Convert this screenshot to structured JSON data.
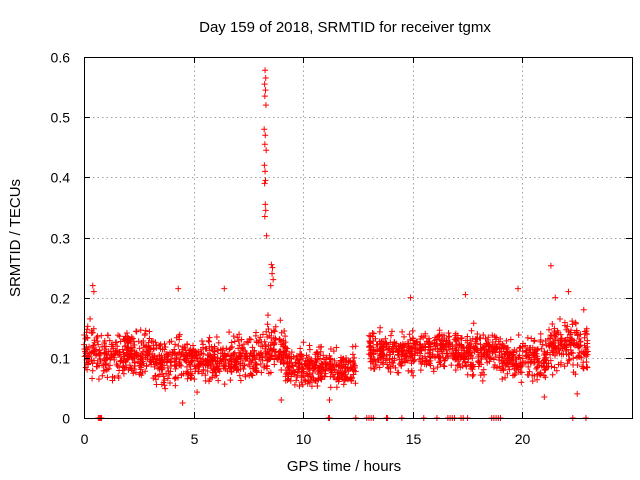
{
  "chart_data": {
    "type": "scatter",
    "title": "Day 159 of 2018, SRMTID for receiver tgmx",
    "xlabel": "GPS time / hours",
    "ylabel": "SRMTID / TECUs",
    "xlim": [
      0,
      25
    ],
    "ylim": [
      0,
      0.6
    ],
    "xticks": [
      0,
      5,
      10,
      15,
      20
    ],
    "xtick_labels": [
      "0",
      "5",
      "10",
      "15",
      "20"
    ],
    "yticks": [
      0,
      0.1,
      0.2,
      0.3,
      0.4,
      0.5,
      0.6
    ],
    "ytick_labels": [
      "0",
      "0.1",
      "0.2",
      "0.3",
      "0.4",
      "0.5",
      "0.6"
    ],
    "grid": true,
    "marker": "+",
    "color": "#ff0000",
    "series": [
      {
        "name": "SRMTID",
        "bands": [
          {
            "x": [
              0.0,
              0.6
            ],
            "mean": 0.11,
            "spread": 0.04
          },
          {
            "x": [
              0.6,
              3.2
            ],
            "mean": 0.105,
            "spread": 0.035
          },
          {
            "x": [
              3.2,
              6.6
            ],
            "mean": 0.095,
            "spread": 0.035
          },
          {
            "x": [
              6.6,
              8.0
            ],
            "mean": 0.1,
            "spread": 0.035
          },
          {
            "x": [
              8.0,
              9.2
            ],
            "mean": 0.115,
            "spread": 0.04
          },
          {
            "x": [
              9.2,
              12.4
            ],
            "mean": 0.085,
            "spread": 0.03
          },
          {
            "x": [
              13.0,
              17.0
            ],
            "mean": 0.11,
            "spread": 0.03
          },
          {
            "x": [
              16.9,
              19.0
            ],
            "mean": 0.11,
            "spread": 0.035
          },
          {
            "x": [
              19.0,
              21.2
            ],
            "mean": 0.1,
            "spread": 0.035
          },
          {
            "x": [
              21.2,
              23.0
            ],
            "mean": 0.12,
            "spread": 0.04
          }
        ],
        "peaks": [
          {
            "x": 8.26,
            "y": 0.578
          },
          {
            "x": 8.29,
            "y": 0.565
          },
          {
            "x": 8.24,
            "y": 0.555
          },
          {
            "x": 8.28,
            "y": 0.545
          },
          {
            "x": 8.25,
            "y": 0.535
          },
          {
            "x": 8.3,
            "y": 0.52
          },
          {
            "x": 8.22,
            "y": 0.48
          },
          {
            "x": 8.27,
            "y": 0.47
          },
          {
            "x": 8.25,
            "y": 0.455
          },
          {
            "x": 8.31,
            "y": 0.445
          },
          {
            "x": 8.23,
            "y": 0.42
          },
          {
            "x": 8.26,
            "y": 0.41
          },
          {
            "x": 8.28,
            "y": 0.395
          },
          {
            "x": 8.24,
            "y": 0.39
          },
          {
            "x": 8.27,
            "y": 0.355
          },
          {
            "x": 8.29,
            "y": 0.345
          },
          {
            "x": 8.25,
            "y": 0.335
          },
          {
            "x": 8.33,
            "y": 0.303
          },
          {
            "x": 8.55,
            "y": 0.255
          },
          {
            "x": 8.6,
            "y": 0.25
          },
          {
            "x": 8.58,
            "y": 0.24
          },
          {
            "x": 8.63,
            "y": 0.23
          },
          {
            "x": 8.52,
            "y": 0.22
          },
          {
            "x": 0.4,
            "y": 0.22
          },
          {
            "x": 0.45,
            "y": 0.21
          },
          {
            "x": 4.3,
            "y": 0.215
          },
          {
            "x": 6.4,
            "y": 0.215
          },
          {
            "x": 14.9,
            "y": 0.2
          },
          {
            "x": 17.4,
            "y": 0.205
          },
          {
            "x": 19.8,
            "y": 0.215
          },
          {
            "x": 21.3,
            "y": 0.253
          },
          {
            "x": 21.5,
            "y": 0.2
          },
          {
            "x": 22.1,
            "y": 0.21
          },
          {
            "x": 22.8,
            "y": 0.18
          },
          {
            "x": 4.5,
            "y": 0.025
          },
          {
            "x": 9.0,
            "y": 0.03
          },
          {
            "x": 11.2,
            "y": 0.03
          },
          {
            "x": 21.0,
            "y": 0.035
          },
          {
            "x": 22.5,
            "y": 0.04
          }
        ],
        "zero_x": [
          0.65,
          0.7,
          0.75,
          0.8,
          11.15,
          11.2,
          12.4,
          12.9,
          13.0,
          13.1,
          13.2,
          13.8,
          13.85,
          14.5,
          15.5,
          16.1,
          16.6,
          16.7,
          16.8,
          16.9,
          17.2,
          17.3,
          17.5,
          18.6,
          18.7,
          18.8,
          18.9,
          19.0,
          22.3,
          22.9
        ]
      }
    ]
  }
}
